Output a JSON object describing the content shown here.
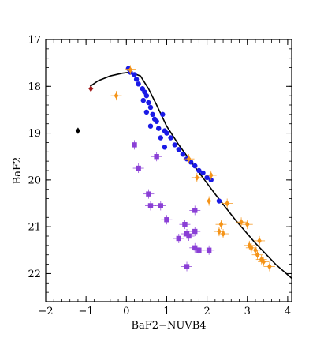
{
  "chart_data": {
    "type": "scatter",
    "title": "",
    "xlabel": "BaF2−NUVB4",
    "ylabel": "BaF2",
    "xlim": [
      -2,
      4.1
    ],
    "ylim": [
      22.6,
      17
    ],
    "y_inverted": true,
    "grid": false,
    "x_tick_labels": [
      "−2",
      "−1",
      "0",
      "1",
      "2",
      "3",
      "4"
    ],
    "x_ticks": [
      -2,
      -1,
      0,
      1,
      2,
      3,
      4
    ],
    "y_tick_labels": [
      "17",
      "18",
      "19",
      "20",
      "21",
      "22"
    ],
    "y_ticks": [
      17,
      18,
      19,
      20,
      21,
      22
    ],
    "colors": {
      "blue": "#1a1ae6",
      "orange": "#f59418",
      "purple": "#8a3fd6",
      "darkred": "#a01818",
      "black": "#000000",
      "curve": "#000000"
    },
    "series": [
      {
        "marker": "circle",
        "color": "blue",
        "points": [
          [
            0.05,
            17.62
          ],
          [
            0.1,
            17.7
          ],
          [
            0.2,
            17.75
          ],
          [
            0.25,
            17.85
          ],
          [
            0.3,
            17.95
          ],
          [
            0.4,
            18.05
          ],
          [
            0.45,
            18.12
          ],
          [
            0.5,
            18.2
          ],
          [
            0.42,
            18.3
          ],
          [
            0.55,
            18.35
          ],
          [
            0.6,
            18.45
          ],
          [
            0.5,
            18.55
          ],
          [
            0.65,
            18.6
          ],
          [
            0.7,
            18.7
          ],
          [
            0.75,
            18.75
          ],
          [
            0.6,
            18.85
          ],
          [
            0.8,
            18.9
          ],
          [
            0.9,
            18.6
          ],
          [
            0.95,
            18.95
          ],
          [
            0.85,
            19.1
          ],
          [
            1.0,
            19.0
          ],
          [
            1.1,
            19.1
          ],
          [
            1.2,
            19.25
          ],
          [
            1.3,
            19.35
          ],
          [
            0.95,
            19.3
          ],
          [
            1.4,
            19.45
          ],
          [
            1.5,
            19.55
          ],
          [
            1.6,
            19.62
          ],
          [
            1.7,
            19.7
          ],
          [
            1.8,
            19.8
          ],
          [
            1.9,
            19.85
          ],
          [
            2.0,
            19.95
          ],
          [
            2.1,
            20.0
          ],
          [
            2.3,
            20.45
          ]
        ]
      },
      {
        "marker": "diamond",
        "color": "orange",
        "points": [
          [
            0.1,
            17.65
          ],
          [
            -0.25,
            18.2
          ],
          [
            1.55,
            19.55
          ],
          [
            1.75,
            19.95
          ],
          [
            2.1,
            19.9
          ],
          [
            2.05,
            20.45
          ],
          [
            2.5,
            20.5
          ],
          [
            2.85,
            20.9
          ],
          [
            2.35,
            20.95
          ],
          [
            2.3,
            21.1
          ],
          [
            2.4,
            21.15
          ],
          [
            3.0,
            20.95
          ],
          [
            3.05,
            21.4
          ],
          [
            3.1,
            21.45
          ],
          [
            3.2,
            21.5
          ],
          [
            3.3,
            21.3
          ],
          [
            3.25,
            21.6
          ],
          [
            3.35,
            21.7
          ],
          [
            3.4,
            21.75
          ],
          [
            3.55,
            21.85
          ]
        ]
      },
      {
        "marker": "square",
        "color": "purple",
        "points": [
          [
            0.2,
            19.25
          ],
          [
            0.3,
            19.75
          ],
          [
            0.75,
            19.5
          ],
          [
            0.55,
            20.3
          ],
          [
            0.6,
            20.55
          ],
          [
            0.85,
            20.55
          ],
          [
            1.0,
            20.85
          ],
          [
            1.7,
            20.65
          ],
          [
            1.45,
            20.95
          ],
          [
            1.5,
            21.15
          ],
          [
            1.55,
            21.2
          ],
          [
            1.7,
            21.1
          ],
          [
            1.3,
            21.25
          ],
          [
            1.7,
            21.45
          ],
          [
            1.8,
            21.5
          ],
          [
            2.05,
            21.5
          ],
          [
            1.5,
            21.85
          ]
        ]
      },
      {
        "marker": "diamond",
        "color": "darkred",
        "points": [
          [
            -0.88,
            18.05
          ]
        ]
      },
      {
        "marker": "diamond",
        "color": "black",
        "points": [
          [
            -1.2,
            18.95
          ]
        ]
      }
    ],
    "curve": [
      [
        -0.9,
        18.0
      ],
      [
        -0.7,
        17.88
      ],
      [
        -0.4,
        17.78
      ],
      [
        -0.1,
        17.72
      ],
      [
        0.1,
        17.7
      ],
      [
        0.35,
        17.78
      ],
      [
        0.55,
        18.05
      ],
      [
        0.75,
        18.4
      ],
      [
        1.0,
        18.85
      ],
      [
        1.3,
        19.25
      ],
      [
        1.7,
        19.72
      ],
      [
        2.2,
        20.3
      ],
      [
        2.7,
        20.85
      ],
      [
        3.2,
        21.35
      ],
      [
        3.7,
        21.8
      ],
      [
        4.1,
        22.1
      ]
    ]
  }
}
